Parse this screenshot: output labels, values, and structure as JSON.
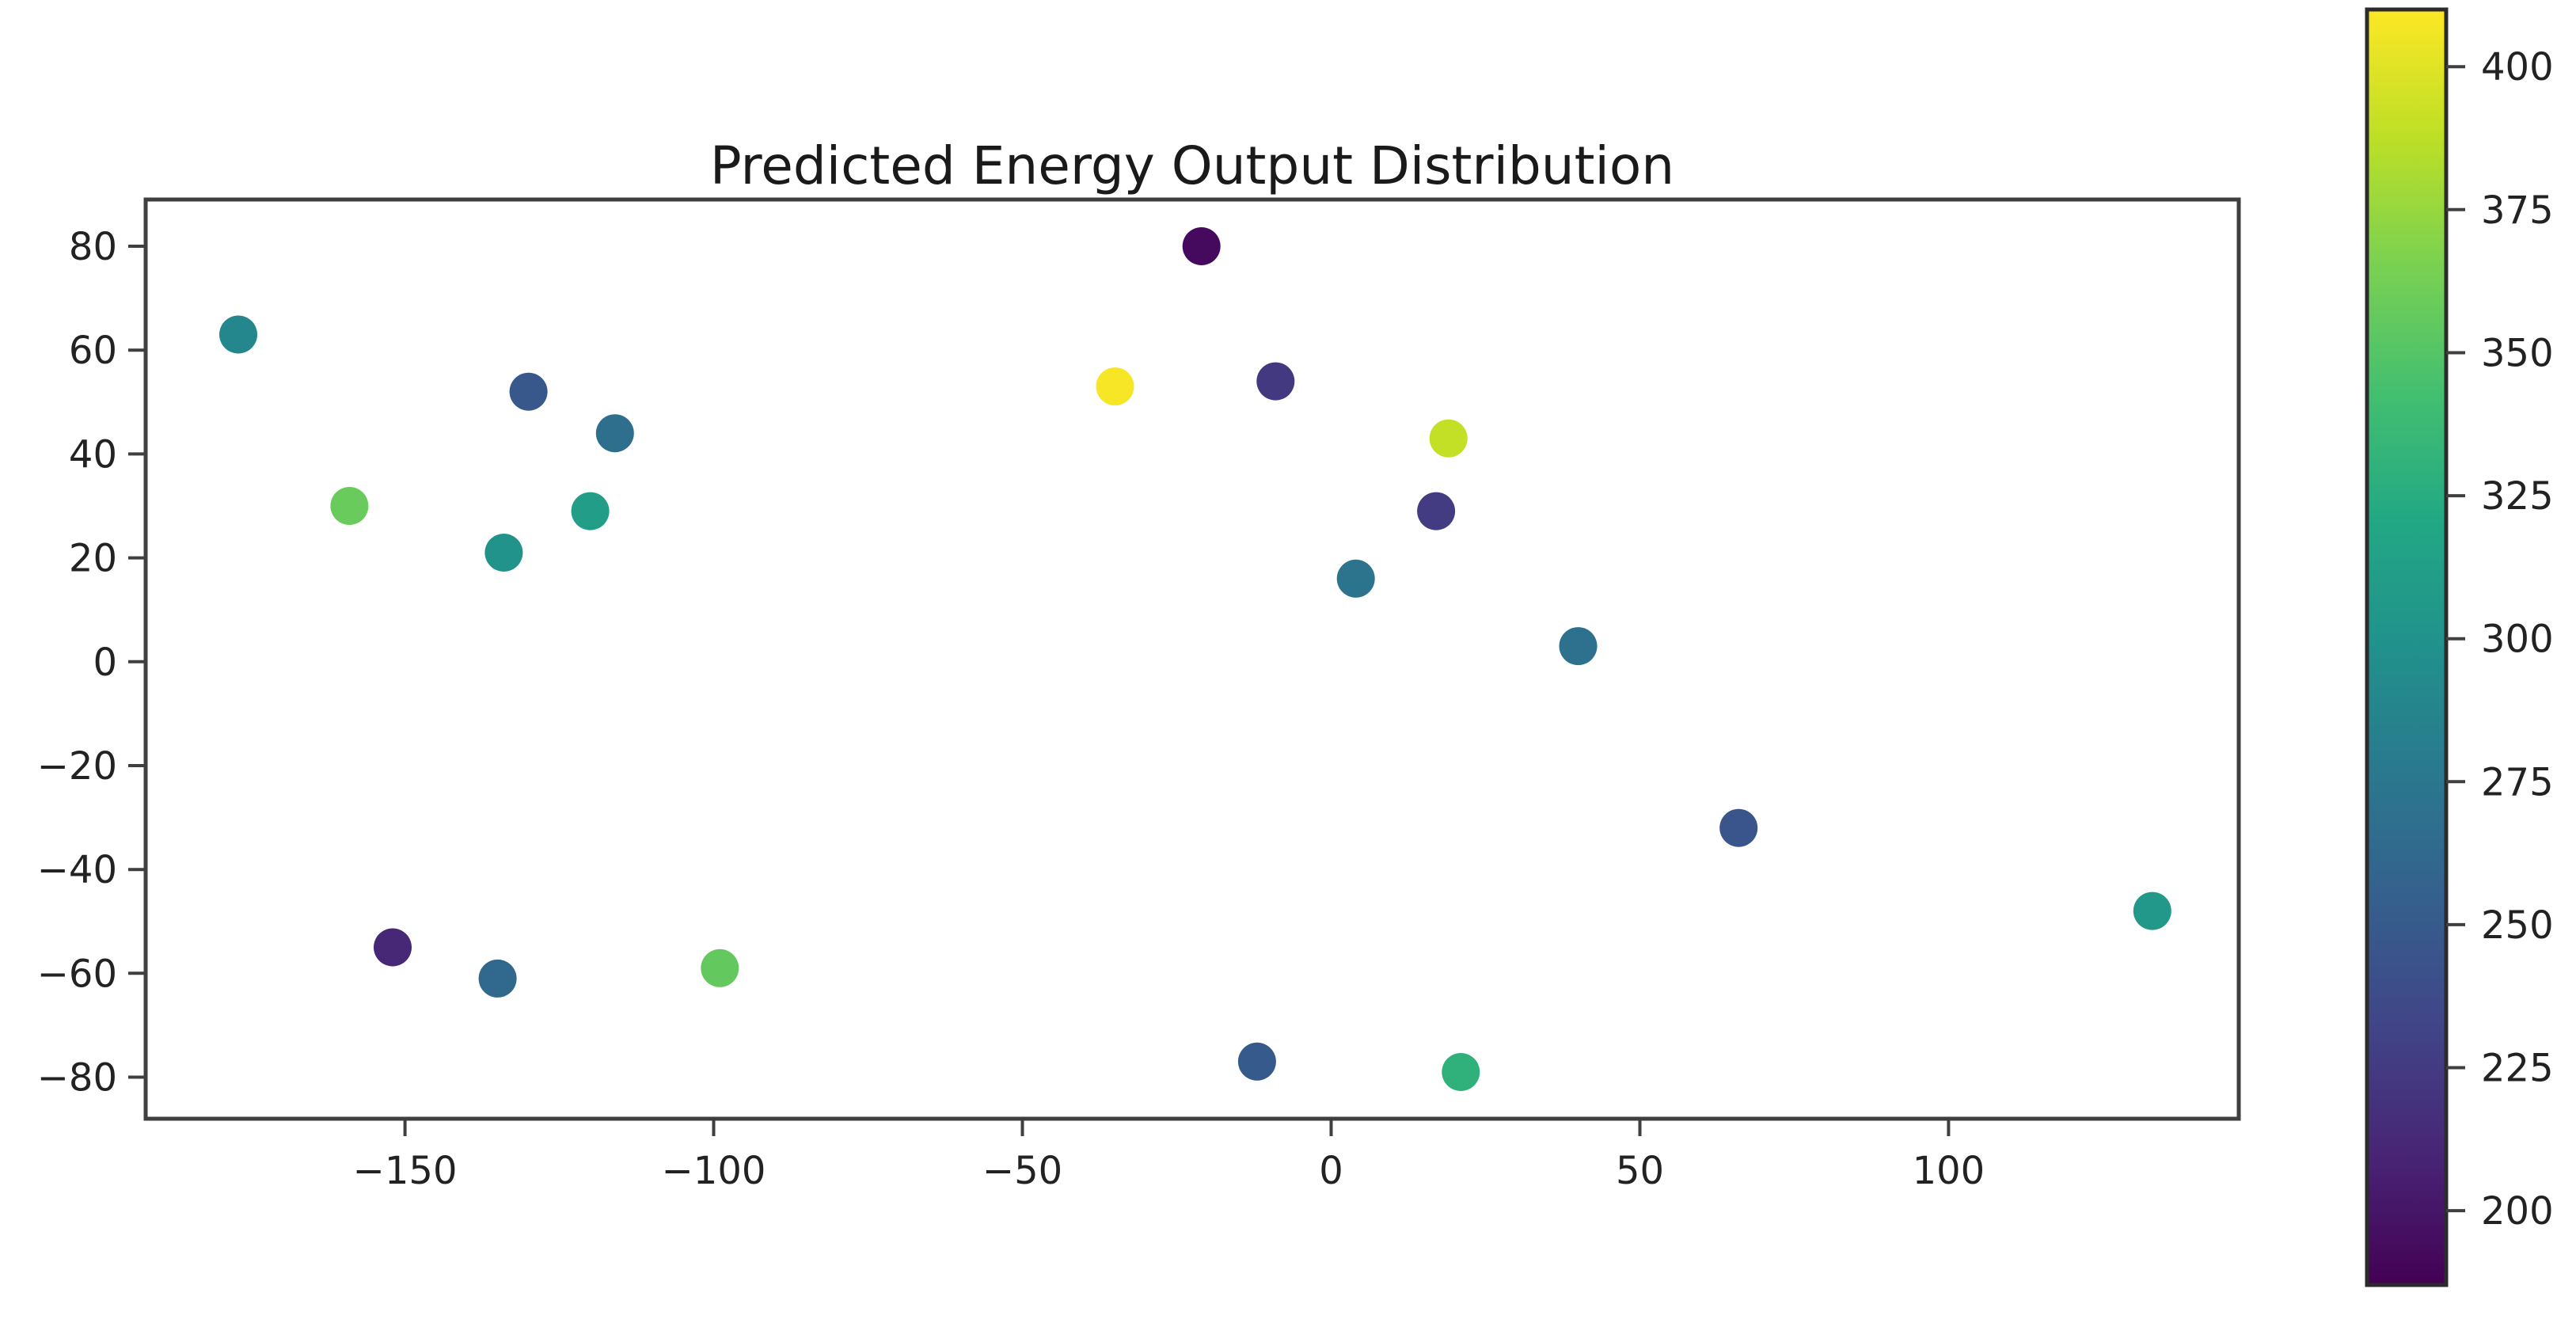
{
  "chart_data": {
    "type": "scatter",
    "title": "Predicted Energy Output Distribution",
    "xlabel": "",
    "ylabel": "",
    "xlim": [
      -192,
      147
    ],
    "ylim": [
      -88,
      89
    ],
    "grid": false,
    "x_ticks": [
      -150,
      -100,
      -50,
      0,
      50,
      100
    ],
    "y_ticks": [
      80,
      60,
      40,
      20,
      0,
      -20,
      -40,
      -60,
      -80
    ],
    "points": [
      {
        "x": -177,
        "y": 63,
        "value": 290
      },
      {
        "x": -130,
        "y": 52,
        "value": 248
      },
      {
        "x": -116,
        "y": 44,
        "value": 268
      },
      {
        "x": -159,
        "y": 30,
        "value": 358
      },
      {
        "x": -120,
        "y": 29,
        "value": 310
      },
      {
        "x": -134,
        "y": 21,
        "value": 300
      },
      {
        "x": -21,
        "y": 80,
        "value": 193
      },
      {
        "x": -35,
        "y": 53,
        "value": 408
      },
      {
        "x": -9,
        "y": 54,
        "value": 224
      },
      {
        "x": 19,
        "y": 43,
        "value": 390
      },
      {
        "x": 17,
        "y": 29,
        "value": 226
      },
      {
        "x": 4,
        "y": 16,
        "value": 273
      },
      {
        "x": 40,
        "y": 3,
        "value": 270
      },
      {
        "x": 66,
        "y": -32,
        "value": 246
      },
      {
        "x": 133,
        "y": -48,
        "value": 305
      },
      {
        "x": -152,
        "y": -55,
        "value": 212
      },
      {
        "x": -135,
        "y": -61,
        "value": 262
      },
      {
        "x": -99,
        "y": -59,
        "value": 356
      },
      {
        "x": -12,
        "y": -77,
        "value": 250
      },
      {
        "x": 21,
        "y": -79,
        "value": 330
      }
    ],
    "colorbar": {
      "vmin": 187,
      "vmax": 410,
      "ticks": [
        200,
        225,
        250,
        275,
        300,
        325,
        350,
        375,
        400
      ],
      "colormap": "viridis"
    },
    "colormap_stops": [
      {
        "pos": 0.0,
        "color": "#440154"
      },
      {
        "pos": 0.1,
        "color": "#482475"
      },
      {
        "pos": 0.2,
        "color": "#414487"
      },
      {
        "pos": 0.3,
        "color": "#355f8d"
      },
      {
        "pos": 0.4,
        "color": "#2a788e"
      },
      {
        "pos": 0.5,
        "color": "#21918c"
      },
      {
        "pos": 0.6,
        "color": "#22a884"
      },
      {
        "pos": 0.7,
        "color": "#44bf70"
      },
      {
        "pos": 0.8,
        "color": "#7ad151"
      },
      {
        "pos": 0.9,
        "color": "#bddf26"
      },
      {
        "pos": 1.0,
        "color": "#fde725"
      }
    ],
    "style_colors": {
      "background": "#ffffff",
      "axis": "#3f3f3f",
      "text": "#222222"
    }
  }
}
